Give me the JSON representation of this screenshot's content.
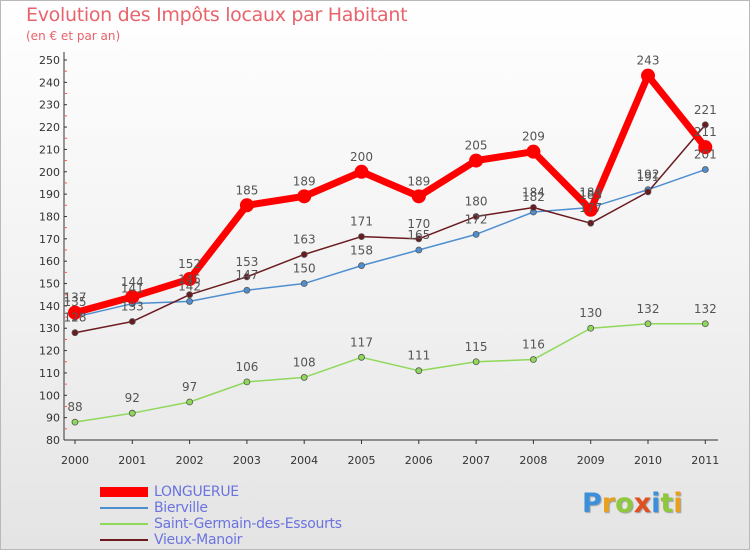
{
  "chart_data": {
    "type": "line",
    "title": "Evolution des Impôts locaux par Habitant",
    "subtitle": "(en € et par an)",
    "x": [
      "2000",
      "2001",
      "2002",
      "2003",
      "2004",
      "2005",
      "2006",
      "2007",
      "2008",
      "2009",
      "2010",
      "2011"
    ],
    "yticks": [
      "80",
      "90",
      "100",
      "110",
      "120",
      "130",
      "140",
      "150",
      "160",
      "170",
      "180",
      "190",
      "200",
      "210",
      "220",
      "230",
      "240",
      "250"
    ],
    "ylim": [
      80,
      250
    ],
    "grid": false,
    "legend_position": "bottom-left",
    "series": [
      {
        "name": "LONGUERUE",
        "color": "#ff0000",
        "values": [
          137,
          144,
          152,
          185,
          189,
          200,
          189,
          205,
          209,
          183,
          243,
          211
        ],
        "labels": [
          "137",
          "144",
          "152",
          "185",
          "189",
          "200",
          "189",
          "205",
          "209",
          "183",
          "243",
          "211"
        ]
      },
      {
        "name": "Bierville",
        "color": "#4f8fd0",
        "values": [
          135,
          141,
          142,
          147,
          150,
          158,
          165,
          172,
          182,
          184,
          192,
          201
        ],
        "labels": [
          "135",
          "141",
          "142",
          "147",
          "150",
          "158",
          "165",
          "172",
          "182",
          "184",
          "192",
          "201"
        ]
      },
      {
        "name": "Saint-Germain-des-Essourts",
        "color": "#8fd85a",
        "values": [
          88,
          92,
          97,
          106,
          108,
          117,
          111,
          115,
          116,
          130,
          132,
          132
        ],
        "labels": [
          "88",
          "92",
          "97",
          "106",
          "108",
          "117",
          "111",
          "115",
          "116",
          "130",
          "132",
          "132"
        ]
      },
      {
        "name": "Vieux-Manoir",
        "color": "#6b1a1f",
        "values": [
          128,
          133,
          145,
          153,
          163,
          171,
          170,
          180,
          184,
          177,
          191,
          221
        ],
        "labels": [
          "128",
          "133",
          "145",
          "153",
          "163",
          "171",
          "170",
          "180",
          "184",
          "177",
          "191",
          "221"
        ]
      }
    ]
  },
  "logo": {
    "letters": [
      "P",
      "r",
      "o",
      "x",
      "i",
      "t",
      "i"
    ],
    "colors": [
      "#3c8fd8",
      "#e8a020",
      "#8fc83c",
      "#e05020",
      "#3c8fd8",
      "#8fc83c",
      "#e8a020"
    ]
  }
}
